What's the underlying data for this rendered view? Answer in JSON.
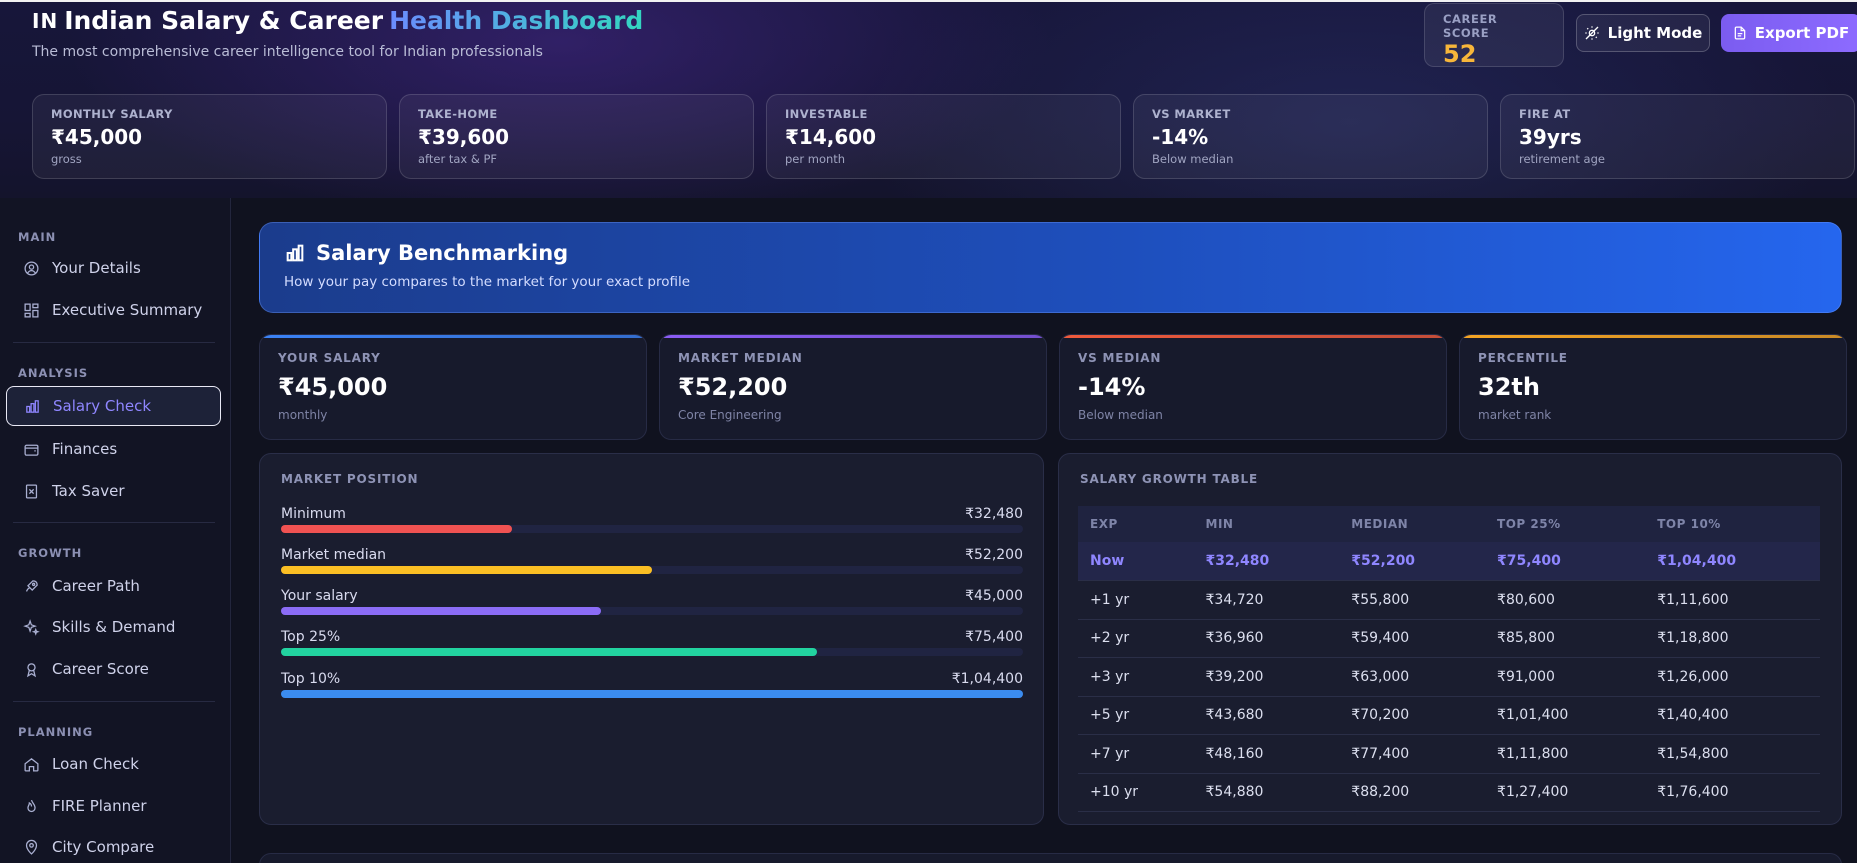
{
  "header": {
    "flag": "IN",
    "title_main": "Indian Salary & Career",
    "title_accent": "Health Dashboard",
    "subtitle": "The most comprehensive career intelligence tool for Indian professionals",
    "career_score_label": "CAREER SCORE",
    "career_score_value": "52",
    "light_mode_label": "Light Mode",
    "export_label": "Export PDF",
    "stats": [
      {
        "label": "MONTHLY SALARY",
        "value": "₹45,000",
        "sub": "gross"
      },
      {
        "label": "TAKE-HOME",
        "value": "₹39,600",
        "sub": "after tax & PF"
      },
      {
        "label": "INVESTABLE",
        "value": "₹14,600",
        "sub": "per month"
      },
      {
        "label": "VS MARKET",
        "value": "-14%",
        "sub": "Below median"
      },
      {
        "label": "FIRE AT",
        "value": "39yrs",
        "sub": "retirement age"
      }
    ]
  },
  "sidebar": {
    "sections": [
      "MAIN",
      "ANALYSIS",
      "GROWTH",
      "PLANNING"
    ],
    "items": [
      {
        "label": "Your Details",
        "icon": "user-circle-icon"
      },
      {
        "label": "Executive Summary",
        "icon": "dashboard-grid-icon"
      },
      {
        "label": "Salary Check",
        "icon": "bar-chart-icon"
      },
      {
        "label": "Finances",
        "icon": "wallet-icon"
      },
      {
        "label": "Tax Saver",
        "icon": "receipt-icon"
      },
      {
        "label": "Career Path",
        "icon": "rocket-icon"
      },
      {
        "label": "Skills & Demand",
        "icon": "sparkles-icon"
      },
      {
        "label": "Career Score",
        "icon": "award-icon"
      },
      {
        "label": "Loan Check",
        "icon": "home-icon"
      },
      {
        "label": "FIRE Planner",
        "icon": "flame-icon"
      },
      {
        "label": "City Compare",
        "icon": "map-pin-icon"
      }
    ]
  },
  "banner": {
    "title": "Salary Benchmarking",
    "subtitle": "How your pay compares to the market for your exact profile"
  },
  "metrics": [
    {
      "label": "YOUR SALARY",
      "value": "₹45,000",
      "sub": "monthly",
      "color": "#3b82f6"
    },
    {
      "label": "MARKET MEDIAN",
      "value": "₹52,200",
      "sub": "Core Engineering",
      "color": "#8b5cf6"
    },
    {
      "label": "VS MEDIAN",
      "value": "-14%",
      "sub": "Below median",
      "color": "#ef5a3c"
    },
    {
      "label": "PERCENTILE",
      "value": "32th",
      "sub": "market rank",
      "color": "#f5a524"
    }
  ],
  "market_position": {
    "title": "MARKET POSITION",
    "rows": [
      {
        "name": "Minimum",
        "amount": "₹32,480",
        "fraction": 0.311,
        "color": "#f05252"
      },
      {
        "name": "Market median",
        "amount": "₹52,200",
        "fraction": 0.5,
        "color": "#fbbf24"
      },
      {
        "name": "Your salary",
        "amount": "₹45,000",
        "fraction": 0.431,
        "color": "#8b6cf6"
      },
      {
        "name": "Top 25%",
        "amount": "₹75,400",
        "fraction": 0.722,
        "color": "#22d3a0"
      },
      {
        "name": "Top 10%",
        "amount": "₹1,04,400",
        "fraction": 1.0,
        "color": "#3b8cf0"
      }
    ]
  },
  "growth_table": {
    "title": "SALARY GROWTH TABLE",
    "columns": [
      "EXP",
      "MIN",
      "MEDIAN",
      "TOP 25%",
      "TOP 10%"
    ],
    "rows": [
      [
        "Now",
        "₹32,480",
        "₹52,200",
        "₹75,400",
        "₹1,04,400"
      ],
      [
        "+1 yr",
        "₹34,720",
        "₹55,800",
        "₹80,600",
        "₹1,11,600"
      ],
      [
        "+2 yr",
        "₹36,960",
        "₹59,400",
        "₹85,800",
        "₹1,18,800"
      ],
      [
        "+3 yr",
        "₹39,200",
        "₹63,000",
        "₹91,000",
        "₹1,26,000"
      ],
      [
        "+5 yr",
        "₹43,680",
        "₹70,200",
        "₹1,01,400",
        "₹1,40,400"
      ],
      [
        "+7 yr",
        "₹48,160",
        "₹77,400",
        "₹1,11,800",
        "₹1,54,800"
      ],
      [
        "+10 yr",
        "₹54,880",
        "₹88,200",
        "₹1,27,400",
        "₹1,76,400"
      ]
    ]
  }
}
